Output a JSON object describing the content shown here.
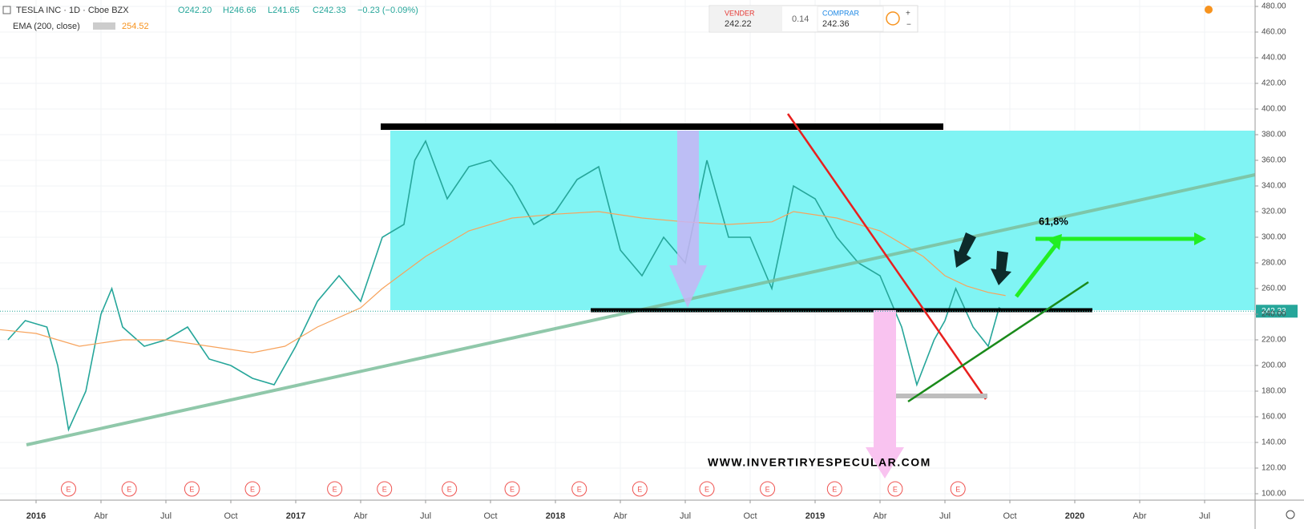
{
  "chart_data": {
    "type": "line",
    "header": {
      "symbol": "TESLA INC · 1D · Cboe BZX",
      "open": "O242.20",
      "high": "H246.66",
      "low": "L241.65",
      "close": "C242.33",
      "change": "−0.23 (−0.09%)",
      "indicator": "EMA (200, close)",
      "indicator_value": "254.52"
    },
    "trade_widget": {
      "sell_label": "VENDER",
      "sell_price": "242.22",
      "spread": "0.14",
      "buy_label": "COMPRAR",
      "buy_price": "242.36"
    },
    "xlim": [
      -1.667,
      56.333
    ],
    "xticks": [
      {
        "value": 0,
        "label": "2016"
      },
      {
        "value": 3,
        "label": "Abr"
      },
      {
        "value": 6,
        "label": "Jul"
      },
      {
        "value": 9,
        "label": "Oct"
      },
      {
        "value": 12,
        "label": "2017"
      },
      {
        "value": 15,
        "label": "Abr"
      },
      {
        "value": 18,
        "label": "Jul"
      },
      {
        "value": 21,
        "label": "Oct"
      },
      {
        "value": 24,
        "label": "2018"
      },
      {
        "value": 27,
        "label": "Abr"
      },
      {
        "value": 30,
        "label": "Jul"
      },
      {
        "value": 33,
        "label": "Oct"
      },
      {
        "value": 36,
        "label": "2019"
      },
      {
        "value": 39,
        "label": "Abr"
      },
      {
        "value": 42,
        "label": "Jul"
      },
      {
        "value": 45,
        "label": "Oct"
      },
      {
        "value": 48,
        "label": "2020"
      },
      {
        "value": 51,
        "label": "Abr"
      },
      {
        "value": 54,
        "label": "Jul"
      }
    ],
    "ylim": [
      95,
      485
    ],
    "yticks": [
      {
        "value": 100,
        "label": "100.00"
      },
      {
        "value": 120,
        "label": "120.00"
      },
      {
        "value": 140,
        "label": "140.00"
      },
      {
        "value": 160,
        "label": "160.00"
      },
      {
        "value": 180,
        "label": "180.00"
      },
      {
        "value": 200,
        "label": "200.00"
      },
      {
        "value": 220,
        "label": "220.00"
      },
      {
        "value": 240,
        "label": "240.00"
      },
      {
        "value": 260,
        "label": "260.00"
      },
      {
        "value": 280,
        "label": "280.00"
      },
      {
        "value": 300,
        "label": "300.00"
      },
      {
        "value": 320,
        "label": "320.00"
      },
      {
        "value": 340,
        "label": "340.00"
      },
      {
        "value": 360,
        "label": "360.00"
      },
      {
        "value": 380,
        "label": "380.00"
      },
      {
        "value": 400,
        "label": "400.00"
      },
      {
        "value": 420,
        "label": "420.00"
      },
      {
        "value": 440,
        "label": "440.00"
      },
      {
        "value": 460,
        "label": "460.00"
      },
      {
        "value": 480,
        "label": "480.00"
      }
    ],
    "series": [
      {
        "color": "#26a69a",
        "x": [
          -1.3,
          -0.5,
          0.5,
          1,
          1.5,
          2.3,
          3,
          3.5,
          4,
          5,
          6,
          7,
          8,
          9,
          10,
          11,
          12,
          13,
          14,
          15,
          16,
          17,
          17.5,
          18,
          19,
          20,
          21,
          22,
          23,
          24,
          25,
          26,
          27,
          28,
          29,
          30,
          31,
          32,
          33,
          34,
          35,
          36,
          37,
          38,
          39,
          40,
          40.7,
          41.5,
          42,
          42.5,
          43.3,
          44,
          44.5,
          44.8
        ],
        "values": [
          220,
          235,
          230,
          200,
          150,
          180,
          240,
          260,
          230,
          215,
          220,
          230,
          205,
          200,
          190,
          185,
          215,
          250,
          270,
          250,
          300,
          310,
          360,
          375,
          330,
          355,
          360,
          340,
          310,
          320,
          345,
          355,
          290,
          270,
          300,
          280,
          360,
          300,
          300,
          260,
          340,
          330,
          300,
          280,
          270,
          230,
          185,
          220,
          235,
          260,
          230,
          215,
          245,
          242
        ]
      },
      {
        "name": "EMA (200, close)",
        "color": "#f7a35c",
        "x": [
          -1.7,
          0,
          2,
          4,
          6,
          8,
          10,
          11.5,
          13,
          15,
          16,
          18,
          20,
          22,
          24,
          26,
          28,
          30,
          32,
          34,
          35,
          37,
          39,
          41,
          42,
          43,
          44,
          44.8
        ],
        "values": [
          228,
          225,
          215,
          220,
          220,
          215,
          210,
          215,
          230,
          245,
          260,
          285,
          305,
          315,
          318,
          320,
          315,
          312,
          310,
          312,
          320,
          315,
          305,
          285,
          270,
          262,
          257,
          254.52
        ]
      }
    ],
    "last_price": 242.33,
    "earnings": {
      "label": "E",
      "x": [
        1.5,
        4.3,
        7.2,
        10,
        13.8,
        16.1,
        19.1,
        22,
        25.1,
        27.9,
        31,
        33.8,
        36.9,
        39.7,
        42.6
      ]
    },
    "annotations": {
      "fib": "61,8%",
      "watermark": "WWW.INVERTIRYESPECULAR.COM"
    }
  }
}
